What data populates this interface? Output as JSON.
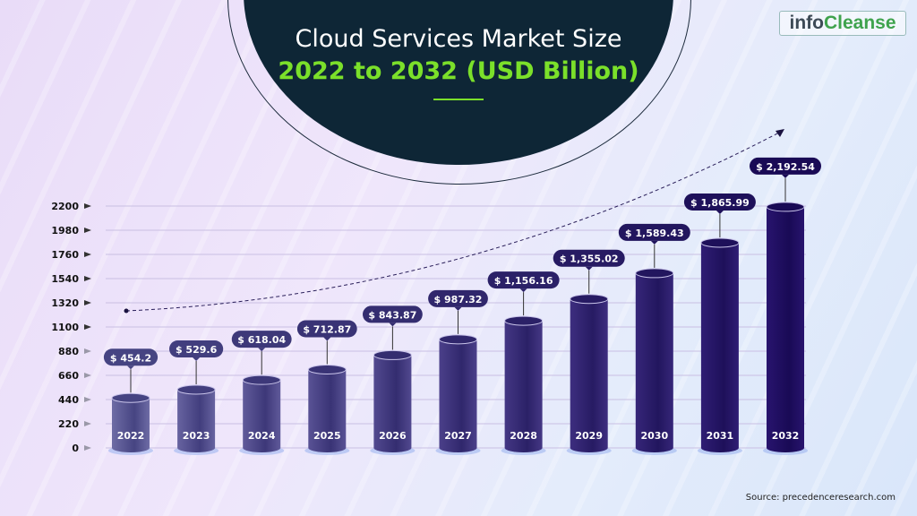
{
  "header": {
    "title_line1": "Cloud Services Market Size",
    "title_line2": "2022 to 2032 (USD Billion)"
  },
  "logo": {
    "part1": "info",
    "part2": "Cleanse"
  },
  "source": "Source: precedenceresearch.com",
  "colors": {
    "title_bg": "#0e2636",
    "accent": "#7be02a",
    "bar_start": "#6a67a3",
    "bar_end": "#1f0f6b"
  },
  "chart_data": {
    "type": "bar",
    "categories": [
      "2022",
      "2023",
      "2024",
      "2025",
      "2026",
      "2027",
      "2028",
      "2029",
      "2030",
      "2031",
      "2032"
    ],
    "values": [
      454.2,
      529.6,
      618.04,
      712.87,
      843.87,
      987.32,
      1156.16,
      1355.02,
      1589.43,
      1865.99,
      2192.54
    ],
    "value_labels": [
      "$ 454.2",
      "$ 529.6",
      "$ 618.04",
      "$ 712.87",
      "$ 843.87",
      "$ 987.32",
      "$ 1,156.16",
      "$ 1,355.02",
      "$ 1,589.43",
      "$ 1,865.99",
      "$ 2,192.54"
    ],
    "yticks": [
      0,
      220,
      440,
      660,
      880,
      1100,
      1320,
      1540,
      1760,
      1980,
      2200
    ],
    "ylim": [
      0,
      2200
    ],
    "title": "Cloud Services Market Size 2022 to 2032 (USD Billion)",
    "grid": true,
    "trend_arrow": true
  }
}
